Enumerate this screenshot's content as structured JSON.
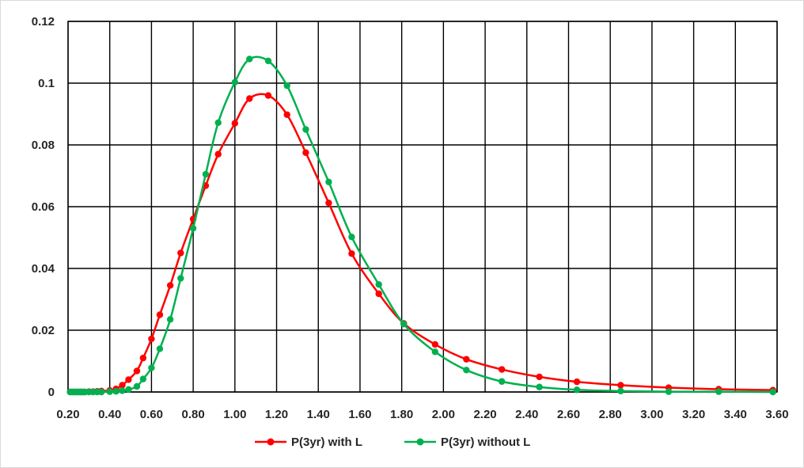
{
  "chart_data": {
    "type": "line",
    "title": "",
    "xlabel": "",
    "ylabel": "",
    "xlim": [
      0.2,
      3.6
    ],
    "ylim": [
      0,
      0.12
    ],
    "x_ticks": [
      "0.20",
      "0.40",
      "0.60",
      "0.80",
      "1.00",
      "1.20",
      "1.40",
      "1.60",
      "1.80",
      "2.00",
      "2.20",
      "2.40",
      "2.60",
      "2.80",
      "3.00",
      "3.20",
      "3.40",
      "3.60"
    ],
    "y_ticks": [
      "0",
      "0.02",
      "0.04",
      "0.06",
      "0.08",
      "0.1",
      "0.12"
    ],
    "grid": true,
    "legend_position": "bottom",
    "series": [
      {
        "name": "P(3yr) with L",
        "color": "#ff0000",
        "x": [
          0.21,
          0.22,
          0.23,
          0.24,
          0.25,
          0.26,
          0.27,
          0.28,
          0.3,
          0.32,
          0.34,
          0.36,
          0.4,
          0.43,
          0.46,
          0.49,
          0.53,
          0.56,
          0.6,
          0.64,
          0.69,
          0.74,
          0.8,
          0.86,
          0.92,
          1.0,
          1.07,
          1.16,
          1.25,
          1.34,
          1.45,
          1.56,
          1.69,
          1.81,
          1.96,
          2.11,
          2.28,
          2.46,
          2.64,
          2.85,
          3.08,
          3.32,
          3.58
        ],
        "values": [
          0,
          0,
          0,
          0,
          0,
          0,
          0,
          0,
          0.0001,
          0.0001,
          0.0002,
          0.0003,
          0.0005,
          0.001,
          0.0022,
          0.004,
          0.0068,
          0.011,
          0.0172,
          0.025,
          0.0345,
          0.045,
          0.056,
          0.0668,
          0.077,
          0.087,
          0.095,
          0.096,
          0.0898,
          0.0775,
          0.0612,
          0.0448,
          0.0318,
          0.0222,
          0.0154,
          0.0106,
          0.0073,
          0.0049,
          0.0033,
          0.0022,
          0.0014,
          0.0009,
          0.0006
        ]
      },
      {
        "name": "P(3yr) without L",
        "color": "#00b050",
        "x": [
          0.21,
          0.22,
          0.23,
          0.24,
          0.25,
          0.26,
          0.27,
          0.28,
          0.3,
          0.32,
          0.34,
          0.36,
          0.4,
          0.43,
          0.46,
          0.49,
          0.53,
          0.56,
          0.6,
          0.64,
          0.69,
          0.74,
          0.8,
          0.86,
          0.92,
          1.0,
          1.07,
          1.16,
          1.25,
          1.34,
          1.45,
          1.56,
          1.69,
          1.81,
          1.96,
          2.11,
          2.28,
          2.46,
          2.64,
          2.85,
          3.08,
          3.32,
          3.58
        ],
        "values": [
          0,
          0,
          0,
          0,
          0,
          0,
          0,
          0,
          0,
          0,
          0,
          0,
          0.0001,
          0.0002,
          0.0004,
          0.0008,
          0.0018,
          0.0042,
          0.0078,
          0.014,
          0.0235,
          0.0368,
          0.053,
          0.0705,
          0.0872,
          0.1003,
          0.1078,
          0.1072,
          0.0992,
          0.085,
          0.068,
          0.0502,
          0.0348,
          0.022,
          0.013,
          0.0071,
          0.0034,
          0.0016,
          0.0007,
          0.0003,
          0.0001,
          0.0001,
          0
        ]
      }
    ]
  }
}
